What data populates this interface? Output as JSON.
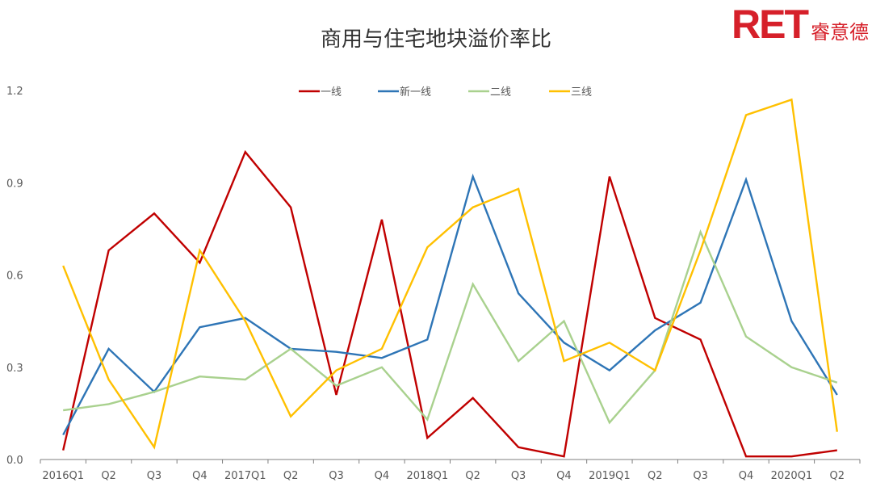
{
  "logo": {
    "text": "RET",
    "chinese": "睿意德",
    "color": "#d6202a"
  },
  "chart_data": {
    "type": "line",
    "title": "商用与住宅地块溢价率比",
    "categories": [
      "2016Q1",
      "Q2",
      "Q3",
      "Q4",
      "2017Q1",
      "Q2",
      "Q3",
      "Q4",
      "2018Q1",
      "Q2",
      "Q3",
      "Q4",
      "2019Q1",
      "Q2",
      "Q3",
      "Q4",
      "2020Q1",
      "Q2"
    ],
    "x_tick_labels": [
      "2016Q1",
      "Q2",
      "Q3",
      "Q4",
      "2017Q1",
      "Q2",
      "Q3",
      "Q4",
      "2018Q1",
      "Q2",
      "Q3",
      "Q4",
      "2019Q1",
      "Q2",
      "Q3",
      "Q4",
      "2020Q1",
      "Q2"
    ],
    "ylim": [
      0,
      1.2
    ],
    "yticks": [
      "0.0",
      "0.3",
      "0.6",
      "0.9",
      "1.2"
    ],
    "grid": false,
    "legend_position": "top",
    "series": [
      {
        "name": "一线",
        "color": "#c00000",
        "values": [
          0.03,
          0.68,
          0.8,
          0.64,
          1.0,
          0.82,
          0.21,
          0.78,
          0.07,
          0.2,
          0.04,
          0.01,
          0.92,
          0.46,
          0.39,
          0.01,
          0.01,
          0.03
        ]
      },
      {
        "name": "新一线",
        "color": "#2e75b6",
        "values": [
          0.08,
          0.36,
          0.22,
          0.43,
          0.46,
          0.36,
          0.35,
          0.33,
          0.39,
          0.92,
          0.54,
          0.38,
          0.29,
          0.42,
          0.51,
          0.91,
          0.45,
          0.21
        ]
      },
      {
        "name": "二线",
        "color": "#a9d18e",
        "values": [
          0.16,
          0.18,
          0.22,
          0.27,
          0.26,
          0.36,
          0.24,
          0.3,
          0.13,
          0.57,
          0.32,
          0.45,
          0.12,
          0.29,
          0.74,
          0.4,
          0.3,
          0.25
        ]
      },
      {
        "name": "三线",
        "color": "#ffc000",
        "values": [
          0.63,
          0.26,
          0.04,
          0.68,
          0.45,
          0.14,
          0.29,
          0.36,
          0.69,
          0.82,
          0.88,
          0.32,
          0.38,
          0.29,
          0.68,
          1.12,
          1.17,
          0.09
        ]
      }
    ]
  }
}
